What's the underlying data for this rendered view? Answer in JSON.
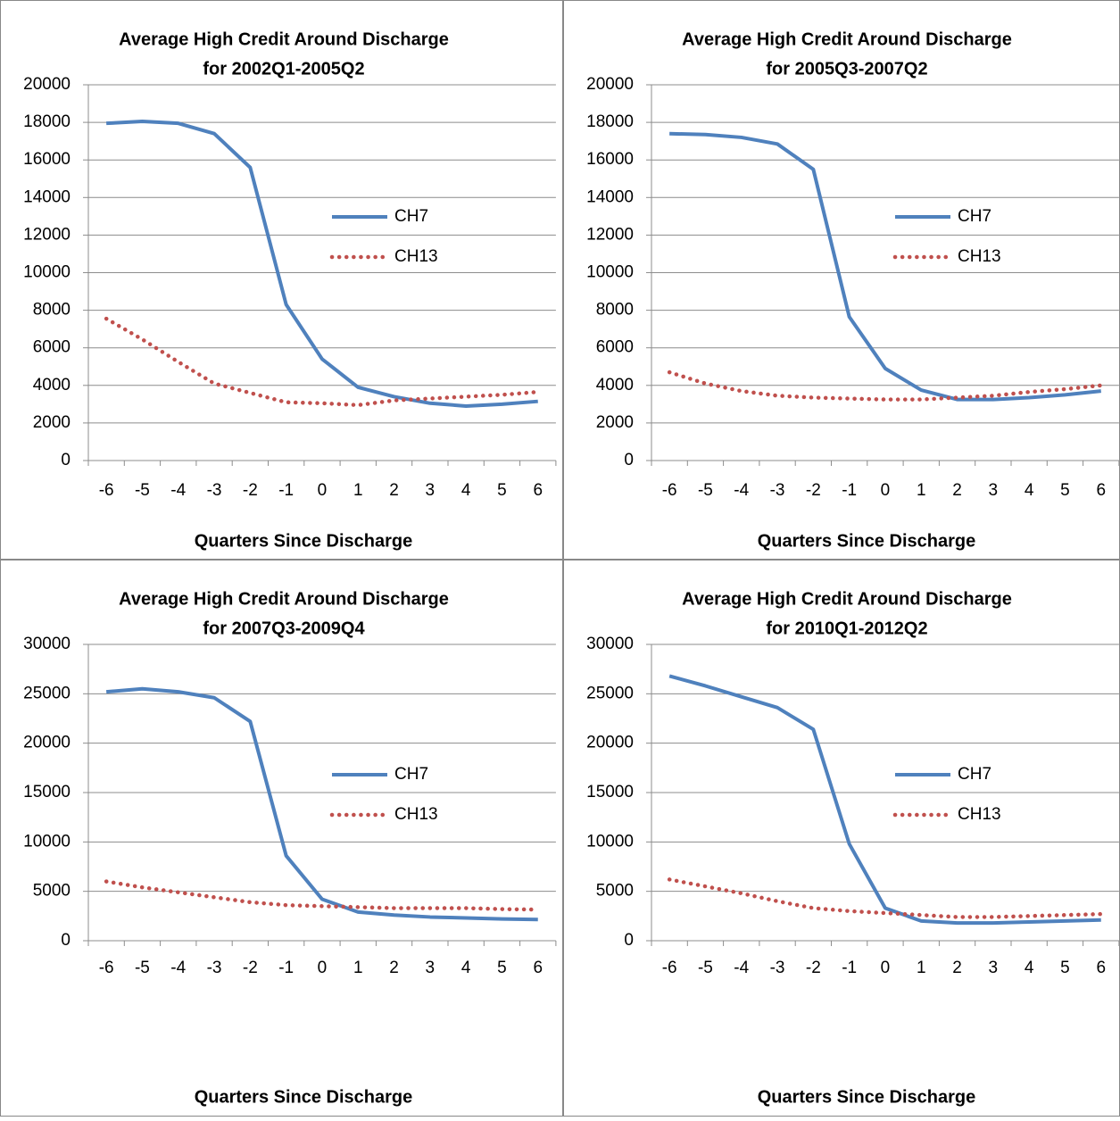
{
  "chart_data": [
    {
      "type": "line",
      "title": [
        "Average High Credit Around Discharge",
        "for 2002Q1-2005Q2"
      ],
      "xlabel": "Quarters Since Discharge",
      "categories": [
        "-6",
        "-5",
        "-4",
        "-3",
        "-2",
        "-1",
        "0",
        "1",
        "2",
        "3",
        "4",
        "5",
        "6"
      ],
      "series": [
        {
          "name": "CH7",
          "color": "#4f81bd",
          "style": "solid",
          "values": [
            17950,
            18050,
            17950,
            17400,
            15600,
            8300,
            5400,
            3900,
            3400,
            3050,
            2900,
            3000,
            3150
          ]
        },
        {
          "name": "CH13",
          "color": "#c0504d",
          "style": "dotted",
          "values": [
            7550,
            6450,
            5250,
            4100,
            3600,
            3100,
            3050,
            2950,
            3200,
            3300,
            3400,
            3500,
            3650
          ]
        }
      ],
      "ylim": [
        0,
        20000
      ],
      "yticks": [
        0,
        2000,
        4000,
        6000,
        8000,
        10000,
        12000,
        14000,
        16000,
        18000,
        20000
      ],
      "grid": true,
      "legend": "right"
    },
    {
      "type": "line",
      "title": [
        "Average High Credit Around Discharge",
        "for 2005Q3-2007Q2"
      ],
      "xlabel": "Quarters Since Discharge",
      "categories": [
        "-6",
        "-5",
        "-4",
        "-3",
        "-2",
        "-1",
        "0",
        "1",
        "2",
        "3",
        "4",
        "5",
        "6"
      ],
      "series": [
        {
          "name": "CH7",
          "color": "#4f81bd",
          "style": "solid",
          "values": [
            17400,
            17350,
            17200,
            16850,
            15500,
            7650,
            4900,
            3750,
            3250,
            3250,
            3350,
            3500,
            3700
          ]
        },
        {
          "name": "CH13",
          "color": "#c0504d",
          "style": "dotted",
          "values": [
            4700,
            4100,
            3700,
            3450,
            3350,
            3300,
            3250,
            3250,
            3350,
            3450,
            3650,
            3800,
            4000
          ]
        }
      ],
      "ylim": [
        0,
        20000
      ],
      "yticks": [
        0,
        2000,
        4000,
        6000,
        8000,
        10000,
        12000,
        14000,
        16000,
        18000,
        20000
      ],
      "grid": true,
      "legend": "right"
    },
    {
      "type": "line",
      "title": [
        "Average High Credit Around Discharge",
        "for 2007Q3-2009Q4"
      ],
      "xlabel": "Quarters Since Discharge",
      "categories": [
        "-6",
        "-5",
        "-4",
        "-3",
        "-2",
        "-1",
        "0",
        "1",
        "2",
        "3",
        "4",
        "5",
        "6"
      ],
      "series": [
        {
          "name": "CH7",
          "color": "#4f81bd",
          "style": "solid",
          "values": [
            25200,
            25500,
            25200,
            24600,
            22200,
            8600,
            4200,
            2900,
            2600,
            2400,
            2300,
            2200,
            2150
          ]
        },
        {
          "name": "CH13",
          "color": "#c0504d",
          "style": "dotted",
          "values": [
            6000,
            5400,
            4900,
            4400,
            3900,
            3600,
            3500,
            3400,
            3300,
            3300,
            3300,
            3200,
            3150
          ]
        }
      ],
      "ylim": [
        0,
        30000
      ],
      "yticks": [
        0,
        5000,
        10000,
        15000,
        20000,
        25000,
        30000
      ],
      "grid": true,
      "legend": "right"
    },
    {
      "type": "line",
      "title": [
        "Average High Credit Around Discharge",
        "for 2010Q1-2012Q2"
      ],
      "xlabel": "Quarters Since Discharge",
      "categories": [
        "-6",
        "-5",
        "-4",
        "-3",
        "-2",
        "-1",
        "0",
        "1",
        "2",
        "3",
        "4",
        "5",
        "6"
      ],
      "series": [
        {
          "name": "CH7",
          "color": "#4f81bd",
          "style": "solid",
          "values": [
            26800,
            25800,
            24700,
            23600,
            21400,
            9800,
            3300,
            2000,
            1800,
            1800,
            1900,
            2000,
            2100
          ]
        },
        {
          "name": "CH13",
          "color": "#c0504d",
          "style": "dotted",
          "values": [
            6200,
            5500,
            4800,
            4000,
            3300,
            3000,
            2800,
            2600,
            2400,
            2400,
            2500,
            2600,
            2700
          ]
        }
      ],
      "ylim": [
        0,
        30000
      ],
      "yticks": [
        0,
        5000,
        10000,
        15000,
        20000,
        25000,
        30000
      ],
      "grid": true,
      "legend": "right"
    }
  ]
}
